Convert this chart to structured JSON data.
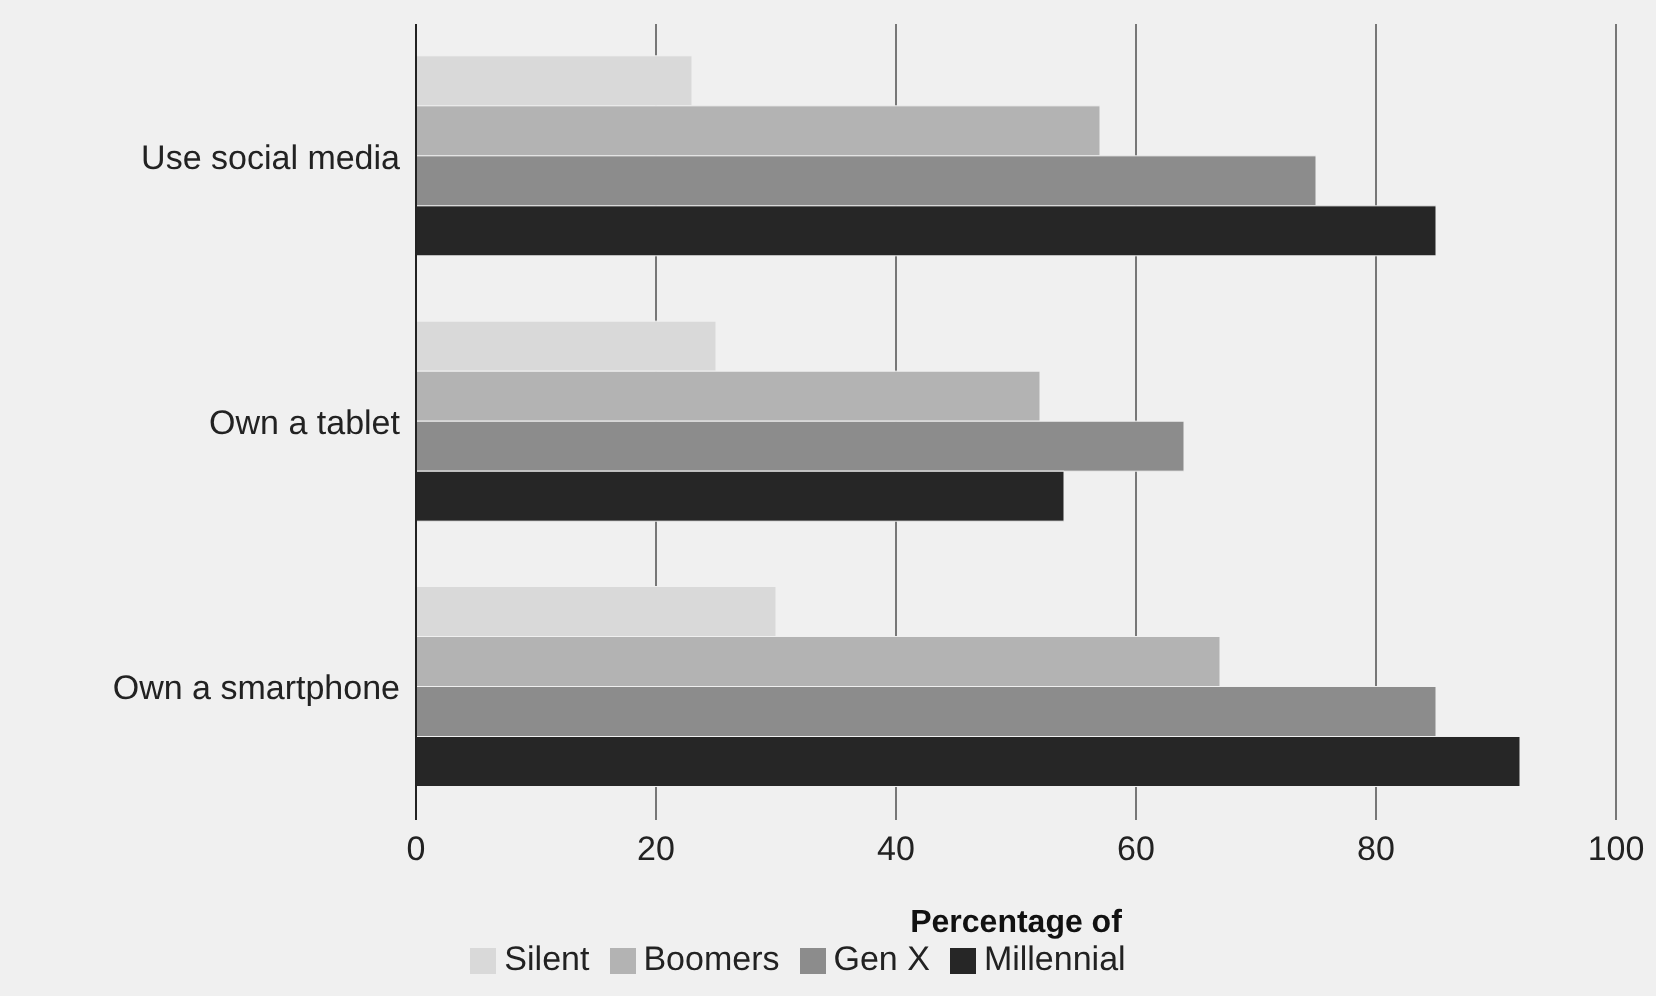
{
  "chart_data": {
    "type": "bar",
    "orientation": "horizontal",
    "xlabel": "Percentage of",
    "categories": [
      "Use social media",
      "Own a tablet",
      "Own a smartphone"
    ],
    "series": [
      {
        "name": "Silent",
        "color": "#d9d9d9",
        "values": [
          23,
          25,
          30
        ]
      },
      {
        "name": "Boomers",
        "color": "#b3b3b3",
        "values": [
          57,
          52,
          67
        ]
      },
      {
        "name": "Gen X",
        "color": "#8c8c8c",
        "values": [
          75,
          64,
          85
        ]
      },
      {
        "name": "Millennial",
        "color": "#262626",
        "values": [
          85,
          54,
          92
        ]
      }
    ],
    "xlim": [
      0,
      100
    ],
    "xticks": [
      0,
      20,
      40,
      60,
      80,
      100
    ],
    "grid": "x",
    "legend": "bottom"
  }
}
